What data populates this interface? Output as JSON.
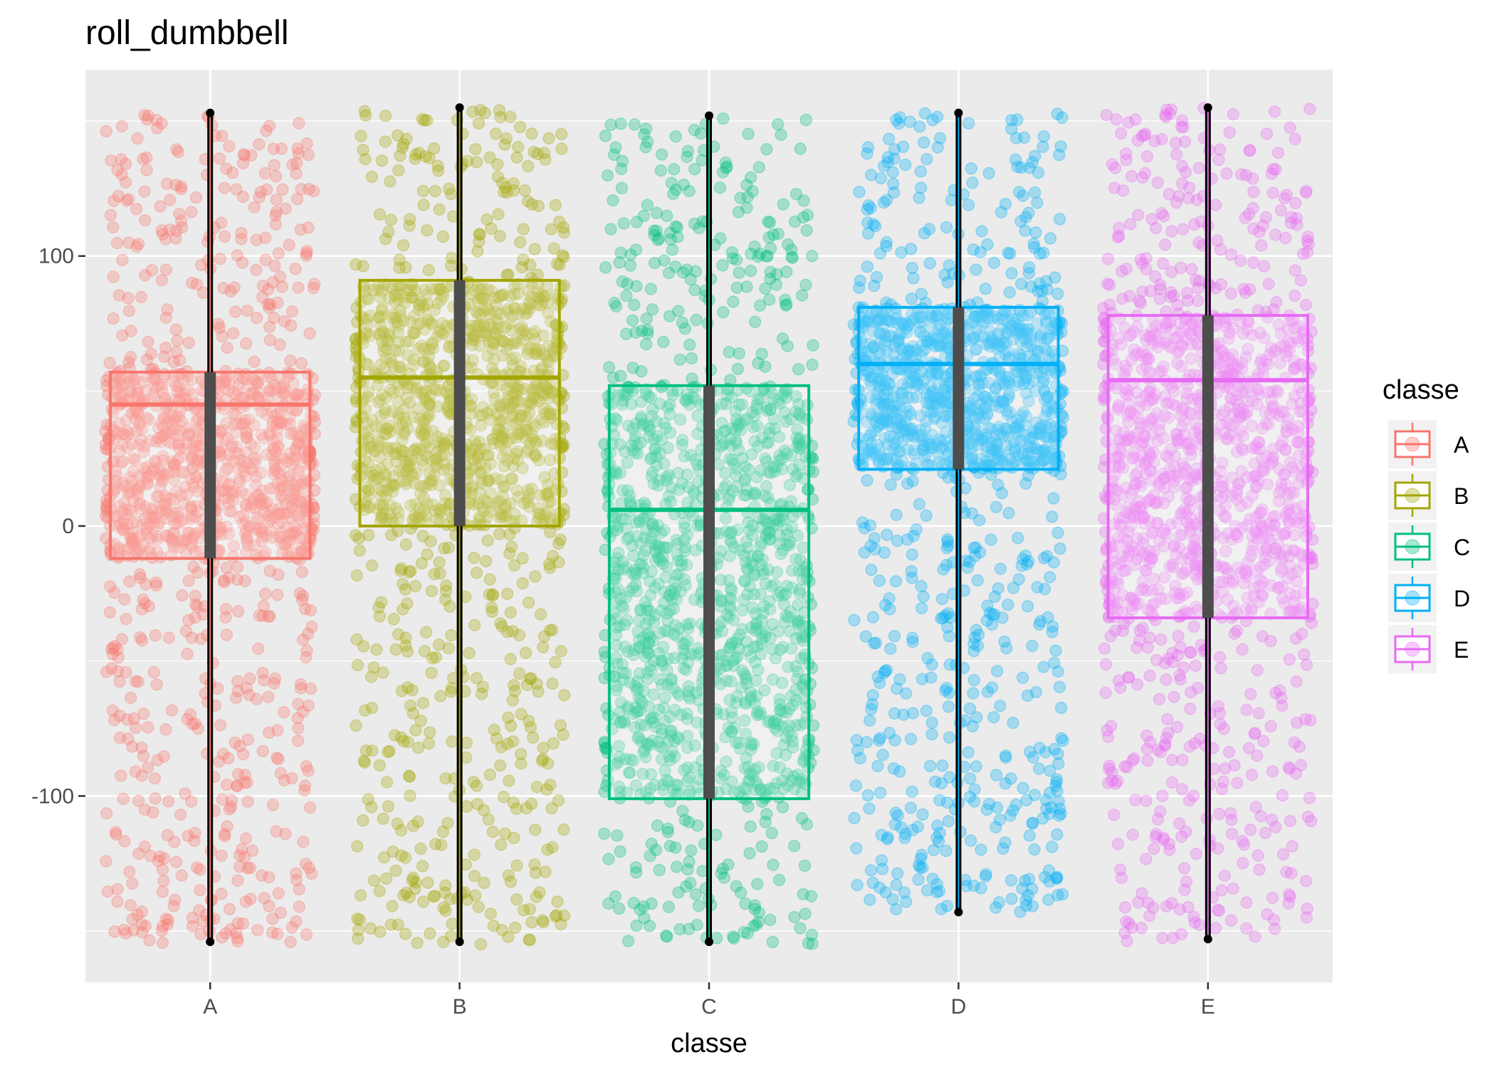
{
  "chart_data": {
    "type": "boxplot",
    "title": "roll_dumbbell",
    "xlabel": "classe",
    "ylabel": "",
    "ylim": [
      -169,
      169
    ],
    "y_ticks": [
      -100,
      0,
      100
    ],
    "y_tick_labels": [
      "-100",
      "0",
      "100"
    ],
    "categories": [
      "A",
      "B",
      "C",
      "D",
      "E"
    ],
    "grid": true,
    "legend": {
      "title": "classe",
      "placement": "right",
      "entries": [
        "A",
        "B",
        "C",
        "D",
        "E"
      ]
    },
    "series": [
      {
        "name": "A",
        "color": "#F8766D",
        "min": -154,
        "q1": -12,
        "median": 45,
        "q3": 57,
        "max": 153,
        "jitter_y_range": [
          -155,
          153
        ]
      },
      {
        "name": "B",
        "color": "#A3A500",
        "min": -154,
        "q1": 0,
        "median": 55,
        "q3": 91,
        "max": 155,
        "jitter_y_range": [
          -155,
          155
        ]
      },
      {
        "name": "C",
        "color": "#00BF7D",
        "min": -154,
        "q1": -101,
        "median": 6,
        "q3": 52,
        "max": 152,
        "jitter_y_range": [
          -155,
          152
        ]
      },
      {
        "name": "D",
        "color": "#00B0F6",
        "min": -143,
        "q1": 21,
        "median": 60,
        "q3": 81,
        "max": 153,
        "jitter_y_range": [
          -143,
          153
        ]
      },
      {
        "name": "E",
        "color": "#E76BF3",
        "min": -153,
        "q1": -34,
        "median": 54,
        "q3": 78,
        "max": 155,
        "jitter_y_range": [
          -154,
          155
        ]
      }
    ]
  }
}
